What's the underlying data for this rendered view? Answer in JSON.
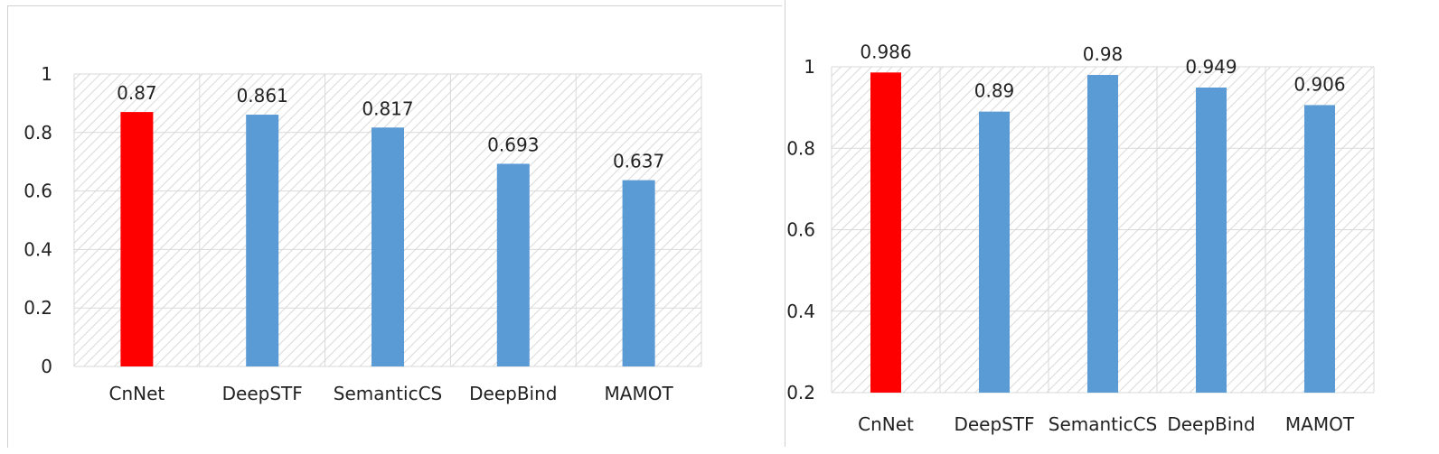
{
  "chart_data": [
    {
      "type": "bar",
      "categories": [
        "CnNet",
        "DeepSTF",
        "SemanticCS",
        "DeepBind",
        "MAMOT"
      ],
      "values": [
        0.87,
        0.861,
        0.817,
        0.693,
        0.637
      ],
      "value_labels": [
        "0.87",
        "0.861",
        "0.817",
        "0.693",
        "0.637"
      ],
      "yticks": [
        "0",
        "0.2",
        "0.4",
        "0.6",
        "0.8",
        "1"
      ],
      "ylim": [
        0,
        1
      ],
      "grid": true,
      "colors": [
        "#ff0000",
        "#5b9bd5",
        "#5b9bd5",
        "#5b9bd5",
        "#5b9bd5"
      ]
    },
    {
      "type": "bar",
      "categories": [
        "CnNet",
        "DeepSTF",
        "SemanticCS",
        "DeepBind",
        "MAMOT"
      ],
      "values": [
        0.986,
        0.89,
        0.98,
        0.949,
        0.906
      ],
      "value_labels": [
        "0.986",
        "0.89",
        "0.98",
        "0.949",
        "0.906"
      ],
      "yticks": [
        "0.2",
        "0.4",
        "0.6",
        "0.8",
        "1"
      ],
      "ylim": [
        0.2,
        1
      ],
      "grid": true,
      "colors": [
        "#ff0000",
        "#5b9bd5",
        "#5b9bd5",
        "#5b9bd5",
        "#5b9bd5"
      ]
    }
  ]
}
